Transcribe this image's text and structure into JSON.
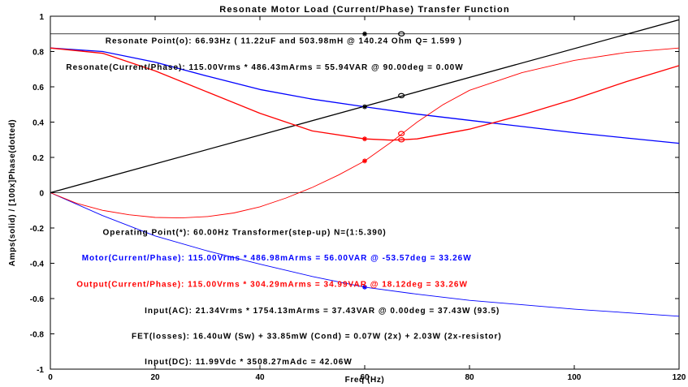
{
  "chart_data": {
    "type": "line",
    "title": "Resonate Motor Load (Current/Phase) Transfer Function",
    "xlabel": "Freq (Hz)",
    "ylabel": "Amps(solid) / [100x]Phase(dotted)",
    "xlim": [
      0,
      120
    ],
    "ylim": [
      -1,
      1
    ],
    "xticks": [
      0,
      20,
      40,
      60,
      80,
      100,
      120
    ],
    "yticks": [
      -1,
      -0.8,
      -0.6,
      -0.4,
      -0.2,
      0,
      0.2,
      0.4,
      0.6,
      0.8,
      1
    ],
    "xtick_labels": [
      "0",
      "20",
      "40",
      "60",
      "80",
      "100",
      "120"
    ],
    "ytick_labels": [
      "-1",
      "-0.8",
      "-0.6",
      "-0.4",
      "-0.2",
      "0",
      "0.2",
      "0.4",
      "0.6",
      "0.8",
      "1"
    ],
    "hlines": [
      0.9,
      0
    ],
    "series": [
      {
        "color": "#000000",
        "style": "solid",
        "x": [
          0,
          120
        ],
        "y": [
          0,
          0.98
        ]
      },
      {
        "color": "#0000ff",
        "style": "solid",
        "x": [
          0,
          10,
          20,
          30,
          40,
          50,
          60,
          70,
          80,
          90,
          100,
          110,
          120
        ],
        "y": [
          0.82,
          0.8,
          0.74,
          0.66,
          0.585,
          0.53,
          0.487,
          0.445,
          0.41,
          0.375,
          0.34,
          0.31,
          0.28
        ]
      },
      {
        "color": "#ff0000",
        "style": "solid",
        "x": [
          0,
          10,
          20,
          30,
          40,
          50,
          60,
          65,
          67,
          70,
          80,
          90,
          100,
          110,
          120
        ],
        "y": [
          0.82,
          0.79,
          0.69,
          0.57,
          0.45,
          0.35,
          0.305,
          0.298,
          0.3,
          0.305,
          0.36,
          0.44,
          0.53,
          0.63,
          0.72
        ]
      },
      {
        "color": "#0000ff",
        "style": "thin",
        "x": [
          0,
          10,
          20,
          30,
          40,
          50,
          60,
          70,
          80,
          90,
          100,
          110,
          120
        ],
        "y": [
          0,
          -0.13,
          -0.245,
          -0.33,
          -0.405,
          -0.475,
          -0.535,
          -0.575,
          -0.61,
          -0.635,
          -0.66,
          -0.68,
          -0.7
        ]
      },
      {
        "color": "#ff0000",
        "style": "thin",
        "x": [
          0,
          5,
          10,
          15,
          20,
          25,
          30,
          35,
          40,
          45,
          50,
          55,
          60,
          65,
          70,
          75,
          80,
          90,
          100,
          110,
          120
        ],
        "y": [
          0,
          -0.06,
          -0.1,
          -0.125,
          -0.14,
          -0.143,
          -0.135,
          -0.115,
          -0.08,
          -0.03,
          0.03,
          0.1,
          0.18,
          0.285,
          0.4,
          0.5,
          0.58,
          0.68,
          0.75,
          0.795,
          0.82
        ]
      }
    ],
    "markers": [
      {
        "symbol": "*",
        "color": "#000000",
        "x": 60,
        "y": 0.9
      },
      {
        "symbol": "o",
        "color": "#000000",
        "x": 67,
        "y": 0.9
      },
      {
        "symbol": "*",
        "color": "#000000",
        "x": 60,
        "y": 0.487
      },
      {
        "symbol": "o",
        "color": "#000000",
        "x": 67,
        "y": 0.55
      },
      {
        "symbol": "*",
        "color": "#ff0000",
        "x": 60,
        "y": 0.305
      },
      {
        "symbol": "o",
        "color": "#ff0000",
        "x": 67,
        "y": 0.3
      },
      {
        "symbol": "o",
        "color": "#ff0000",
        "x": 67,
        "y": 0.335
      },
      {
        "symbol": "*",
        "color": "#ff0000",
        "x": 60,
        "y": 0.18
      },
      {
        "symbol": "*",
        "color": "#0000ff",
        "x": 60,
        "y": -0.535
      }
    ],
    "annotations": [
      {
        "text": "Resonate Point(o):  66.93Hz ( 11.22uF and 503.98mH @ 140.24 Ohm Q= 1.599 )",
        "x": 10.5,
        "y": 0.865,
        "color": "#000000"
      },
      {
        "text": "Resonate(Current/Phase): 115.00Vrms *  486.43mArms = 55.94VAR @  90.00deg = 0.00W",
        "x": 3,
        "y": 0.715,
        "color": "#000000"
      },
      {
        "text": "Operating Point(*):  60.00Hz  Transformer(step-up) N=(1:5.390)",
        "x": 10,
        "y": -0.22,
        "color": "#000000"
      },
      {
        "text": "Motor(Current/Phase): 115.00Vrms *  486.98mArms = 56.00VAR @  -53.57deg = 33.26W",
        "x": 6,
        "y": -0.365,
        "color": "#0000ff"
      },
      {
        "text": "Output(Current/Phase): 115.00Vrms *  304.29mArms = 34.99VAR @  18.12deg = 33.26W",
        "x": 5,
        "y": -0.515,
        "color": "#ff0000"
      },
      {
        "text": "Input(AC):  21.34Vrms * 1754.13mArms = 37.43VAR @    0.00deg = 37.43W  (93.5)",
        "x": 18,
        "y": -0.665,
        "color": "#000000"
      },
      {
        "text": "FET(losses): 16.40uW (Sw) + 33.85mW (Cond) = 0.07W (2x) + 2.03W (2x-resistor)",
        "x": 15.5,
        "y": -0.81,
        "color": "#000000"
      },
      {
        "text": "Input(DC):  11.99Vdc  * 3508.27mAdc  = 42.06W",
        "x": 18,
        "y": -0.955,
        "color": "#000000"
      }
    ]
  }
}
